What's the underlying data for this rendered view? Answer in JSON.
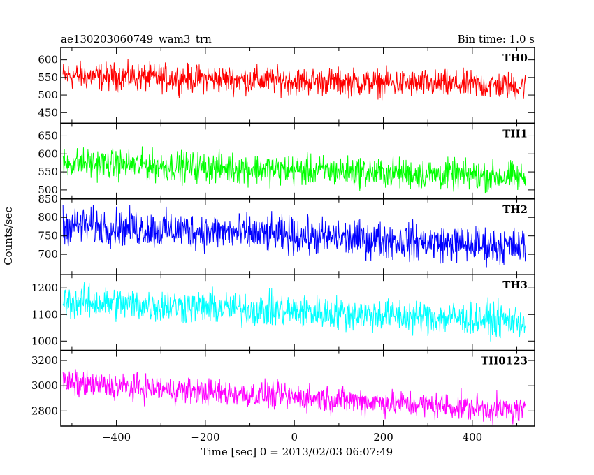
{
  "chart_data": {
    "type": "line",
    "title": "ae130203060749_wam3_trn",
    "subtitle": "Bin time: 1.0 s",
    "xlabel": "Time [sec] 0 = 2013/02/03 06:07:49",
    "ylabel": "Counts/sec",
    "xlim": [
      -525,
      540
    ],
    "x_ticks": [
      -400,
      -200,
      0,
      200,
      400
    ],
    "x_range": [
      -520,
      520
    ],
    "grid": false,
    "series": [
      {
        "name": "TH0",
        "color": "#ff0000",
        "ylim": [
          420,
          635
        ],
        "yticks": [
          450,
          500,
          550,
          600
        ],
        "trend_start": 555,
        "trend_end": 525,
        "noise": 30
      },
      {
        "name": "TH1",
        "color": "#00ff00",
        "ylim": [
          475,
          685
        ],
        "yticks": [
          500,
          550,
          600,
          650
        ],
        "trend_start": 575,
        "trend_end": 535,
        "noise": 32
      },
      {
        "name": "TH2",
        "color": "#0000ff",
        "ylim": [
          645,
          850
        ],
        "yticks": [
          700,
          750,
          800,
          850
        ],
        "trend_start": 780,
        "trend_end": 720,
        "noise": 38
      },
      {
        "name": "TH3",
        "color": "#00ffff",
        "ylim": [
          965,
          1250
        ],
        "yticks": [
          1000,
          1100,
          1200
        ],
        "trend_start": 1150,
        "trend_end": 1075,
        "noise": 48
      },
      {
        "name": "TH0123",
        "color": "#ff00ff",
        "ylim": [
          2680,
          3280
        ],
        "yticks": [
          2800,
          3000,
          3200
        ],
        "trend_start": 3020,
        "trend_end": 2800,
        "noise": 80
      }
    ]
  }
}
